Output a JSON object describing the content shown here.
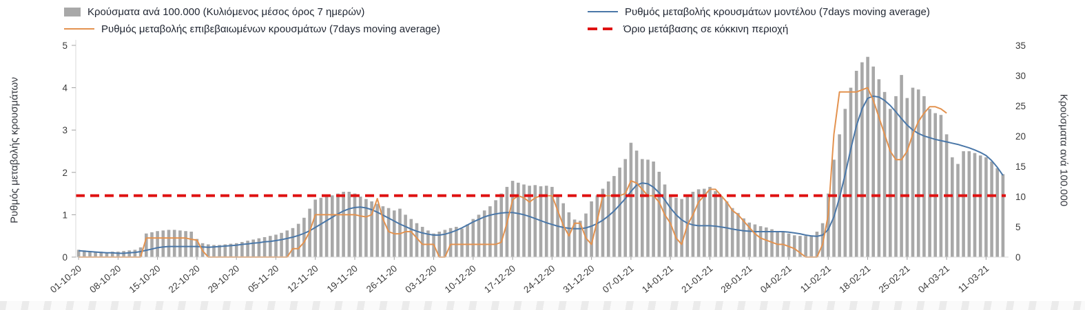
{
  "chart_data": {
    "type": "combo-bar-line",
    "tick_interval_days": 7,
    "x_tick_labels": [
      "01-10-20",
      "08-10-20",
      "15-10-20",
      "22-10-20",
      "29-10-20",
      "05-11-20",
      "12-11-20",
      "19-11-20",
      "26-11-20",
      "03-12-20",
      "10-12-20",
      "17-12-20",
      "24-12-20",
      "31-12-20",
      "07-01-21",
      "14-01-21",
      "21-01-21",
      "28-01-21",
      "04-02-21",
      "11-02-21",
      "18-02-21",
      "25-02-21",
      "04-03-21",
      "11-03-21"
    ],
    "left_axis": {
      "label": "Ρυθμός μεταβολής κρουσμάτων",
      "min": 0,
      "max": 5,
      "ticks": [
        0,
        1,
        2,
        3,
        4,
        5
      ]
    },
    "right_axis": {
      "label": "Κρούσματα ανά 100.000",
      "min": 0,
      "max": 35,
      "ticks": [
        0,
        5,
        10,
        15,
        20,
        25,
        30,
        35
      ]
    },
    "threshold": {
      "name": "Όριο μετάβασης σε κόκκινη περιοχή",
      "value": 1.45,
      "axis": "left",
      "color": "#df1111",
      "style": "dashed"
    },
    "series": [
      {
        "key": "cases-per-100k",
        "name": "Κρούσματα ανά 100.000 (Κυλιόμενος μέσος όρος 7 ημερών)",
        "type": "bar",
        "axis": "right",
        "color": "#a8a8a8",
        "values": [
          1.2,
          1.1,
          1.0,
          0.9,
          0.9,
          0.8,
          0.9,
          0.9,
          1.0,
          1.1,
          1.2,
          1.6,
          3.9,
          4.1,
          4.3,
          4.4,
          4.5,
          4.5,
          4.4,
          4.3,
          4.2,
          3.0,
          2.3,
          2.1,
          2.0,
          2.0,
          2.1,
          2.2,
          2.3,
          2.5,
          2.7,
          2.9,
          3.1,
          3.3,
          3.5,
          3.7,
          4.0,
          4.4,
          4.8,
          5.5,
          6.5,
          8.0,
          9.5,
          9.8,
          10.0,
          10.2,
          10.5,
          10.8,
          10.8,
          10.5,
          10.0,
          9.6,
          9.2,
          8.8,
          8.4,
          8.1,
          7.7,
          8.0,
          7.0,
          6.3,
          5.6,
          5.0,
          4.4,
          3.9,
          4.2,
          4.5,
          4.8,
          5.0,
          4.7,
          5.4,
          6.3,
          7.0,
          7.7,
          8.4,
          9.4,
          10.5,
          11.6,
          12.6,
          12.3,
          12.0,
          11.8,
          11.9,
          11.7,
          11.8,
          11.6,
          10.3,
          8.9,
          7.4,
          6.2,
          6.0,
          7.2,
          9.2,
          10.2,
          11.3,
          12.5,
          13.4,
          14.8,
          16.2,
          18.9,
          17.6,
          16.2,
          16.1,
          15.8,
          14.1,
          12.0,
          10.2,
          9.8,
          9.6,
          10.1,
          10.8,
          11.2,
          11.3,
          11.6,
          10.9,
          10.1,
          9.2,
          8.1,
          7.3,
          6.4,
          5.7,
          5.4,
          5.1,
          4.9,
          4.6,
          4.3,
          4.1,
          3.9,
          3.6,
          3.5,
          3.5,
          3.6,
          4.2,
          5.6,
          10.5,
          16.1,
          20.3,
          24.5,
          28.0,
          30.8,
          32.2,
          33.1,
          31.5,
          29.4,
          27.3,
          24.5,
          26.6,
          30.1,
          26.3,
          28.0,
          27.7,
          26.6,
          24.5,
          23.8,
          23.5,
          20.3,
          16.5,
          15.4,
          17.5,
          17.5,
          17.2,
          16.8,
          16.5,
          15.8,
          14.7,
          13.7
        ]
      },
      {
        "key": "model-rate",
        "name": "Ρυθμός μεταβολής κρουσμάτων μοντέλου (7days moving average)",
        "type": "line",
        "axis": "left",
        "color": "#4a77a8",
        "values": [
          0.15,
          0.14,
          0.13,
          0.12,
          0.11,
          0.1,
          0.1,
          0.09,
          0.09,
          0.1,
          0.11,
          0.13,
          0.16,
          0.19,
          0.22,
          0.24,
          0.25,
          0.25,
          0.25,
          0.25,
          0.25,
          0.25,
          0.24,
          0.23,
          0.24,
          0.25,
          0.26,
          0.27,
          0.28,
          0.3,
          0.31,
          0.33,
          0.34,
          0.36,
          0.37,
          0.39,
          0.41,
          0.44,
          0.47,
          0.51,
          0.56,
          0.62,
          0.7,
          0.78,
          0.86,
          0.94,
          1.02,
          1.09,
          1.14,
          1.17,
          1.18,
          1.16,
          1.12,
          1.06,
          0.99,
          0.92,
          0.85,
          0.78,
          0.72,
          0.66,
          0.61,
          0.57,
          0.54,
          0.52,
          0.52,
          0.54,
          0.58,
          0.63,
          0.69,
          0.76,
          0.83,
          0.89,
          0.95,
          0.99,
          1.02,
          1.04,
          1.05,
          1.05,
          1.03,
          1.0,
          0.96,
          0.91,
          0.86,
          0.81,
          0.77,
          0.73,
          0.7,
          0.68,
          0.67,
          0.67,
          0.69,
          0.73,
          0.79,
          0.87,
          0.97,
          1.09,
          1.23,
          1.38,
          1.55,
          1.7,
          1.75,
          1.73,
          1.65,
          1.52,
          1.35,
          1.16,
          1.0,
          0.88,
          0.8,
          0.76,
          0.74,
          0.74,
          0.74,
          0.73,
          0.71,
          0.69,
          0.66,
          0.64,
          0.62,
          0.61,
          0.6,
          0.6,
          0.6,
          0.6,
          0.6,
          0.6,
          0.59,
          0.57,
          0.55,
          0.52,
          0.5,
          0.49,
          0.52,
          0.65,
          0.95,
          1.4,
          1.95,
          2.55,
          3.1,
          3.5,
          3.75,
          3.8,
          3.78,
          3.7,
          3.58,
          3.43,
          3.27,
          3.12,
          3.0,
          2.92,
          2.86,
          2.82,
          2.78,
          2.75,
          2.72,
          2.69,
          2.66,
          2.62,
          2.58,
          2.53,
          2.47,
          2.4,
          2.28,
          2.12,
          1.93
        ]
      },
      {
        "key": "confirmed-rate",
        "name": "Ρυθμός μεταβολής επιβεβαιωμένων κρουσμάτων (7days moving average)",
        "type": "line",
        "axis": "left",
        "color": "#e3924f",
        "values": [
          0,
          0,
          0,
          0,
          0,
          0,
          0,
          0,
          0,
          0,
          0,
          0,
          0.45,
          0.45,
          0.45,
          0.45,
          0.45,
          0.45,
          0.45,
          0.45,
          0.42,
          0.4,
          0.15,
          0,
          0,
          0,
          0,
          0,
          0,
          0,
          0,
          0,
          0,
          0,
          0,
          0,
          0,
          0,
          0.2,
          0.2,
          0.35,
          0.6,
          1.0,
          1.0,
          1.0,
          1.0,
          1.0,
          1.0,
          1.0,
          1.0,
          0.97,
          0.95,
          1.0,
          1.38,
          0.9,
          0.6,
          0.55,
          0.55,
          0.6,
          0.6,
          0.45,
          0.3,
          0.3,
          0.3,
          0.0,
          0.0,
          0.3,
          0.3,
          0.3,
          0.3,
          0.3,
          0.3,
          0.3,
          0.3,
          0.3,
          0.35,
          0.8,
          1.35,
          1.45,
          1.4,
          1.3,
          1.4,
          1.45,
          1.45,
          1.45,
          1.1,
          0.75,
          0.5,
          0.8,
          0.8,
          0.45,
          0.3,
          0.85,
          1.45,
          1.45,
          1.45,
          1.45,
          1.5,
          1.8,
          1.75,
          1.6,
          1.45,
          1.45,
          1.3,
          1.0,
          0.8,
          0.45,
          0.3,
          0.75,
          1.0,
          1.3,
          1.45,
          1.6,
          1.6,
          1.45,
          1.3,
          1.1,
          1.0,
          0.85,
          0.7,
          0.55,
          0.45,
          0.4,
          0.35,
          0.3,
          0.3,
          0.25,
          0.2,
          0.1,
          0,
          0,
          0,
          0.3,
          1.0,
          2.9,
          3.9,
          3.9,
          3.9,
          3.9,
          3.95,
          4.0,
          3.7,
          3.3,
          2.9,
          2.5,
          2.3,
          2.3,
          2.5,
          2.9,
          3.2,
          3.4,
          3.55,
          3.55,
          3.5,
          3.4,
          null,
          null,
          null,
          null,
          null,
          null,
          null,
          null,
          null,
          null
        ]
      }
    ]
  }
}
